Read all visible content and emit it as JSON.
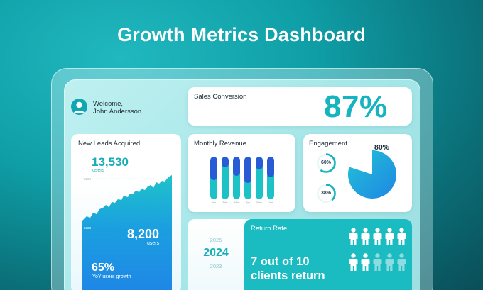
{
  "page": {
    "title": "Growth Metrics Dashboard"
  },
  "welcome": {
    "greeting": "Welcome,",
    "name": "John Andersson",
    "avatar_icon": "user-avatar-icon"
  },
  "sales": {
    "label": "Sales Conversion",
    "value": "87%"
  },
  "leads": {
    "label": "New Leads Acquired",
    "count": "13,530",
    "count_unit": "users",
    "year_top": "2024",
    "year_bottom": "2023",
    "prev_count": "8,200",
    "prev_unit": "users",
    "growth": "65%",
    "growth_label": "YoY users growth"
  },
  "revenue": {
    "label": "Monthly Revenue",
    "months": [
      "Jan",
      "Feb",
      "Mar",
      "Apr",
      "May",
      "Jun"
    ],
    "fill": [
      0.55,
      0.25,
      0.45,
      0.62,
      0.3,
      0.48
    ]
  },
  "engagement": {
    "label": "Engagement",
    "main": "80%",
    "main_fraction": 0.8,
    "ring1": "60%",
    "ring1_fraction": 0.6,
    "ring2": "38%",
    "ring2_fraction": 0.38
  },
  "years": {
    "prev": "2025",
    "current": "2024",
    "next": "2023"
  },
  "return_rate": {
    "label": "Return Rate",
    "line1": "7 out of 10",
    "line2": "clients return",
    "returning": 7,
    "total": 10
  },
  "colors": {
    "teal": "#17aeb9",
    "navy_fill": "#2a5bd7",
    "bar_base": "#1dc2c6",
    "panel_teal": "#1bbcc1"
  }
}
